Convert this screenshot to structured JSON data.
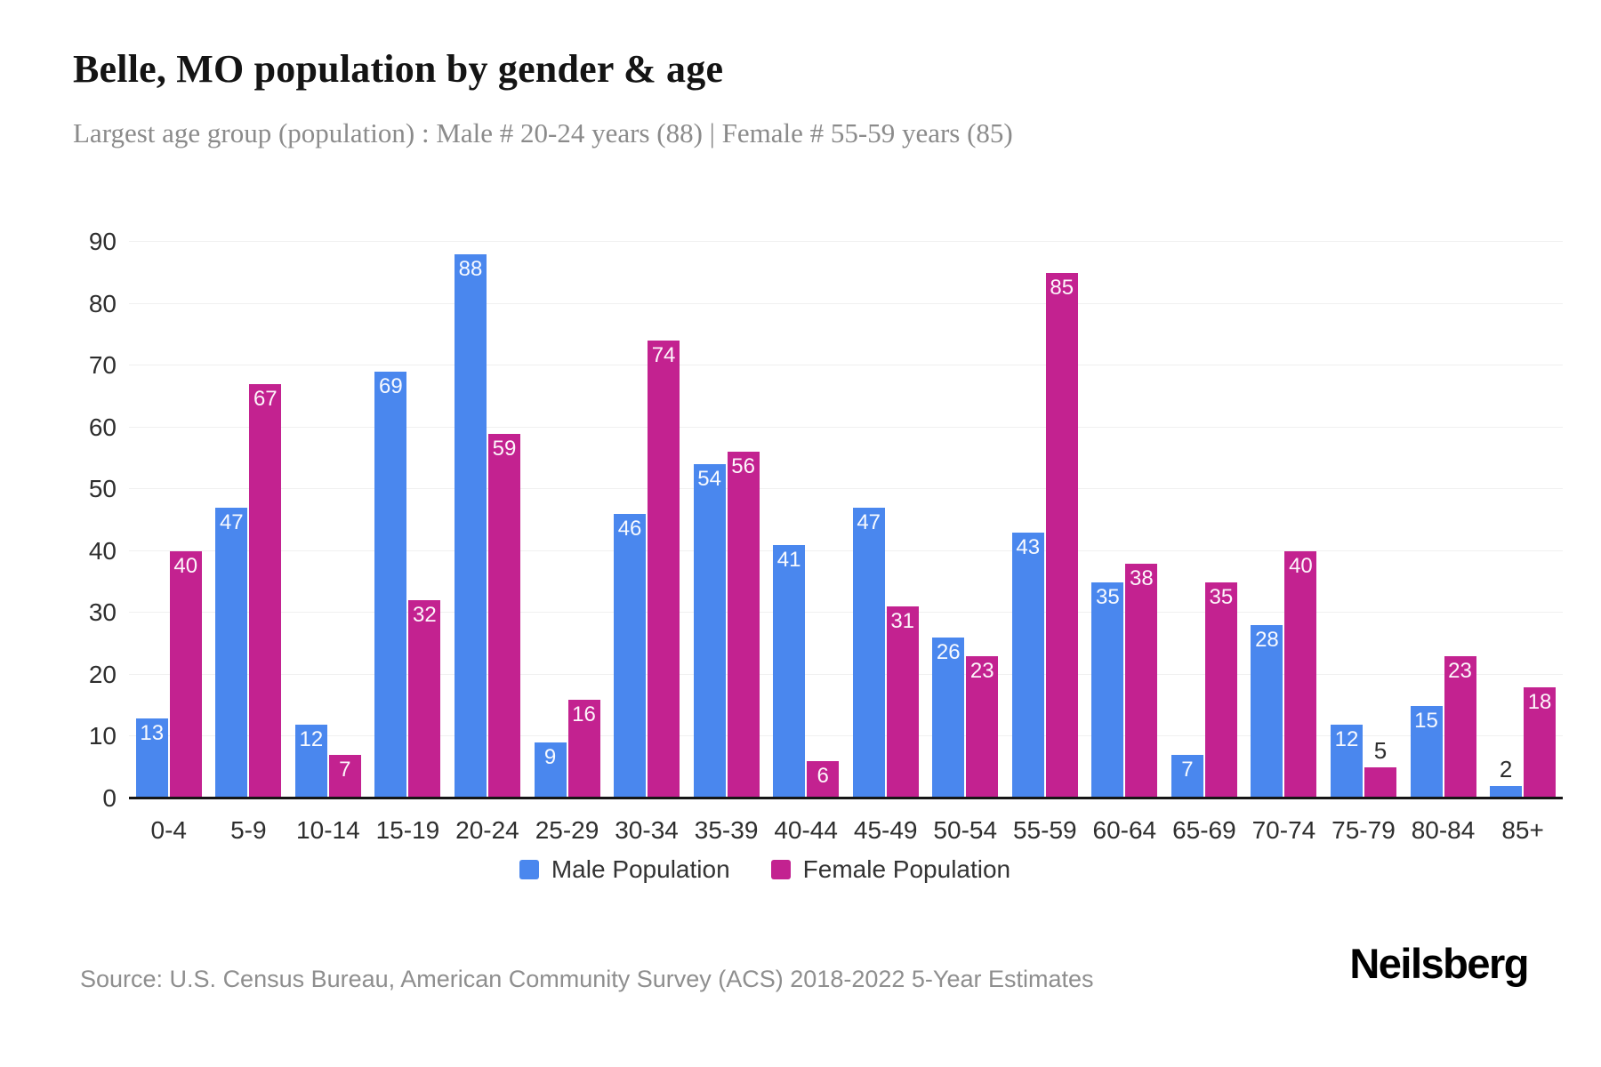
{
  "header": {
    "title": "Belle, MO population by gender & age",
    "subtitle": "Largest age group (population) : Male # 20-24 years (88) | Female # 55-59 years (85)"
  },
  "chart_data": {
    "type": "bar",
    "title": "Belle, MO population by gender & age",
    "categories": [
      "0-4",
      "5-9",
      "10-14",
      "15-19",
      "20-24",
      "25-29",
      "30-34",
      "35-39",
      "40-44",
      "45-49",
      "50-54",
      "55-59",
      "60-64",
      "65-69",
      "70-74",
      "75-79",
      "80-84",
      "85+"
    ],
    "series": [
      {
        "name": "Male Population",
        "color": "#4a87ee",
        "values": [
          13,
          47,
          12,
          69,
          88,
          9,
          46,
          54,
          41,
          47,
          26,
          43,
          35,
          7,
          28,
          12,
          15,
          2
        ]
      },
      {
        "name": "Female Population",
        "color": "#c32290",
        "values": [
          40,
          67,
          7,
          32,
          59,
          16,
          74,
          56,
          6,
          31,
          23,
          85,
          38,
          35,
          40,
          5,
          23,
          18
        ]
      }
    ],
    "xlabel": "",
    "ylabel": "",
    "ylim": [
      0,
      90
    ],
    "yticks": [
      0,
      10,
      20,
      30,
      40,
      50,
      60,
      70,
      80,
      90
    ],
    "grid": true,
    "legend_position": "bottom",
    "label_outside_threshold": 6
  },
  "footer": {
    "source": "Source: U.S. Census Bureau, American Community Survey (ACS) 2018-2022 5-Year Estimates",
    "brand": "Neilsberg"
  }
}
